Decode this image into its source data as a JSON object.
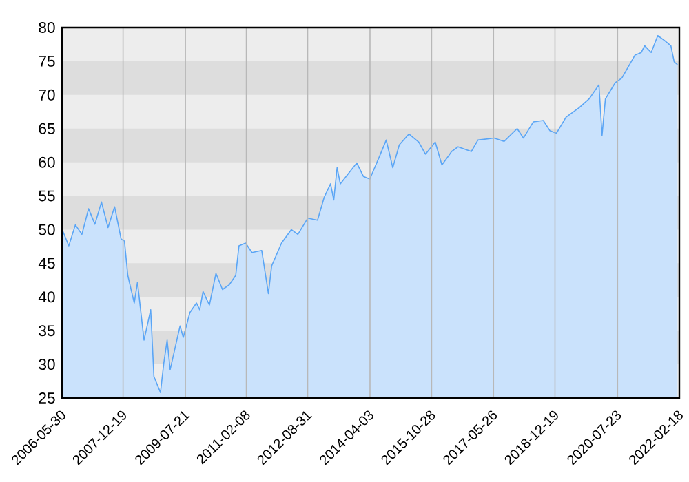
{
  "chart_data": {
    "type": "area",
    "grid": "x",
    "marker": "none",
    "bands": [
      {
        "axis": "y",
        "from": 30,
        "to": 35,
        "color": "#dddddd"
      },
      {
        "axis": "y",
        "from": 40,
        "to": 45,
        "color": "#dddddd"
      },
      {
        "axis": "y",
        "from": 50,
        "to": 55,
        "color": "#dddddd"
      },
      {
        "axis": "y",
        "from": 60,
        "to": 65,
        "color": "#dddddd"
      },
      {
        "axis": "y",
        "from": 70,
        "to": 75,
        "color": "#dddddd"
      }
    ],
    "xlim": [
      "2006-05-30",
      "2022-02-18"
    ],
    "xticks": [
      "2006-05-30",
      "2007-12-19",
      "2009-07-21",
      "2011-02-08",
      "2012-08-31",
      "2014-04-03",
      "2015-10-28",
      "2017-05-26",
      "2018-12-19",
      "2020-07-23",
      "2022-02-18"
    ],
    "ylim": [
      25,
      80
    ],
    "yticks": [
      25,
      30,
      35,
      40,
      45,
      50,
      55,
      60,
      65,
      70,
      75,
      80
    ],
    "series": [
      {
        "color": "#5aa5f5",
        "x": [
          "2006-06",
          "2006-08",
          "2006-10",
          "2006-12",
          "2007-02",
          "2007-04",
          "2007-06",
          "2007-08",
          "2007-10",
          "2007-12",
          "2008-01",
          "2008-02",
          "2008-04",
          "2008-05",
          "2008-07",
          "2008-09",
          "2008-10",
          "2008-12",
          "2009-01",
          "2009-02",
          "2009-03",
          "2009-06",
          "2009-07",
          "2009-09",
          "2009-11",
          "2009-12",
          "2010-01",
          "2010-03",
          "2010-05",
          "2010-07",
          "2010-09",
          "2010-11",
          "2010-12",
          "2011-02",
          "2011-04",
          "2011-07",
          "2011-09",
          "2011-10",
          "2012-01",
          "2012-04",
          "2012-06",
          "2012-09",
          "2012-12",
          "2013-02",
          "2013-04",
          "2013-05",
          "2013-06",
          "2013-07",
          "2013-12",
          "2014-02",
          "2014-04",
          "2014-07",
          "2014-09",
          "2014-11",
          "2015-01",
          "2015-04",
          "2015-07",
          "2015-09",
          "2015-12",
          "2016-02",
          "2016-04",
          "2016-05",
          "2016-07",
          "2016-11",
          "2017-01",
          "2017-06",
          "2017-09",
          "2018-01",
          "2018-03",
          "2018-06",
          "2018-09",
          "2018-11",
          "2019-01",
          "2019-04",
          "2019-08",
          "2019-11",
          "2020-02",
          "2020-03",
          "2020-04",
          "2020-07",
          "2020-09",
          "2021-01",
          "2021-03",
          "2021-04",
          "2021-06",
          "2021-08",
          "2021-10",
          "2021-12",
          "2022-01",
          "2022-02"
        ],
        "values": [
          50.0,
          47.6,
          50.7,
          49.3,
          53.1,
          50.8,
          54.1,
          50.3,
          53.4,
          48.6,
          48.3,
          43.2,
          39.1,
          42.2,
          33.6,
          38.1,
          28.2,
          25.8,
          30.2,
          33.6,
          29.2,
          35.7,
          34.0,
          37.7,
          39.1,
          38.1,
          40.8,
          38.8,
          43.5,
          41.1,
          41.8,
          43.2,
          47.6,
          48.0,
          46.6,
          46.9,
          40.5,
          44.6,
          48.0,
          50.0,
          49.3,
          51.7,
          51.4,
          54.8,
          56.8,
          54.4,
          59.2,
          56.8,
          59.9,
          57.9,
          57.5,
          60.9,
          63.3,
          59.2,
          62.6,
          64.2,
          63.0,
          61.2,
          63.0,
          59.6,
          60.9,
          61.6,
          62.3,
          61.6,
          63.3,
          63.6,
          63.1,
          65.0,
          63.6,
          66.0,
          66.2,
          64.7,
          64.3,
          66.7,
          68.1,
          69.4,
          71.5,
          64.0,
          69.4,
          71.8,
          72.5,
          75.9,
          76.3,
          77.3,
          76.3,
          78.8,
          78.1,
          77.3,
          74.9,
          74.5
        ]
      }
    ]
  }
}
